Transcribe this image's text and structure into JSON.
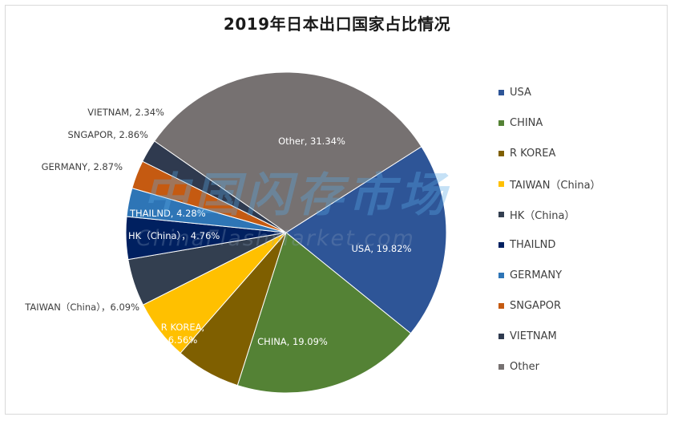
{
  "chart_data": {
    "type": "pie",
    "title": "2019年日本出口国家占比情况",
    "slices": [
      {
        "name": "USA",
        "value": 19.82,
        "label": "USA, 19.82%",
        "color": "#2e5597"
      },
      {
        "name": "CHINA",
        "value": 19.09,
        "label": "CHINA, 19.09%",
        "color": "#548235"
      },
      {
        "name": "R KOREA",
        "value": 6.56,
        "label": "R KOREA,\n6.56%",
        "color": "#7f5f00"
      },
      {
        "name": "TAIWAN（China）",
        "value": 6.09,
        "label": "TAIWAN（China），6.09%",
        "color": "#ffc000"
      },
      {
        "name": "HK（China）",
        "value": 4.76,
        "label": "HK（China），4.76%",
        "color": "#333f50"
      },
      {
        "name": "THAILND",
        "value": 4.28,
        "label": "THAILND, 4.28%",
        "color": "#002060"
      },
      {
        "name": "GERMANY",
        "value": 2.87,
        "label": "GERMANY, 2.87%",
        "color": "#2e75b6"
      },
      {
        "name": "SNGAPOR",
        "value": 2.86,
        "label": "SNGAPOR, 2.86%",
        "color": "#c55a11"
      },
      {
        "name": "VIETNAM",
        "value": 2.34,
        "label": "VIETNAM, 2.34%",
        "color": "#2f3a4f"
      },
      {
        "name": "Other",
        "value": 31.34,
        "label": "Other, 31.34%",
        "color": "#767171"
      }
    ],
    "legend": [
      "USA",
      "CHINA",
      "R KOREA",
      "TAIWAN（China）",
      "HK（China）",
      "THAILND",
      "GERMANY",
      "SNGAPOR",
      "VIETNAM",
      "Other"
    ],
    "legend_position": "right"
  },
  "watermark": {
    "cn": "中国闪存市场",
    "en": "ChinaFlashMarket.com"
  }
}
